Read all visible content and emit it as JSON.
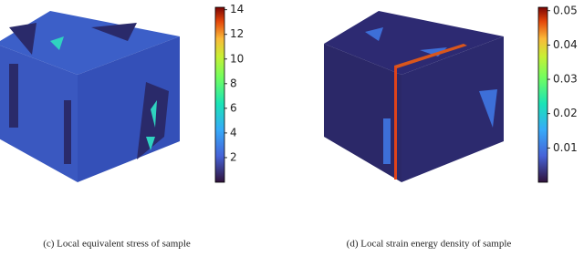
{
  "panels": [
    {
      "caption": "(c) Local equivalent stress of sample",
      "colorbar": {
        "lim": [
          0,
          14.2
        ],
        "ticks": [
          2,
          4,
          6,
          8,
          10,
          12,
          14
        ]
      }
    },
    {
      "caption": "(d) Local strain energy density of sample",
      "colorbar": {
        "lim": [
          0,
          0.051
        ],
        "ticks": [
          0.01,
          0.02,
          0.03,
          0.04,
          0.05
        ]
      }
    }
  ]
}
